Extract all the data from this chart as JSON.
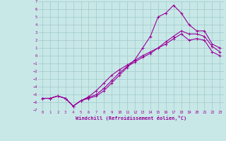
{
  "xlabel": "Windchill (Refroidissement éolien,°C)",
  "xlim": [
    -0.5,
    23.5
  ],
  "ylim": [
    -7,
    7
  ],
  "xticks": [
    0,
    1,
    2,
    3,
    4,
    5,
    6,
    7,
    8,
    9,
    10,
    11,
    12,
    13,
    14,
    15,
    16,
    17,
    18,
    19,
    20,
    21,
    22,
    23
  ],
  "yticks": [
    7,
    6,
    5,
    4,
    3,
    2,
    1,
    0,
    -1,
    -2,
    -3,
    -4,
    -5,
    -6,
    -7
  ],
  "bg_color": "#c8e8e8",
  "grid_color": "#a0c8c8",
  "line_color": "#990099",
  "line1_y": [
    -5.5,
    -5.5,
    -5.2,
    -5.5,
    -6.5,
    -5.8,
    -5.5,
    -5.2,
    -4.5,
    -3.5,
    -2.5,
    -1.5,
    -0.5,
    1.0,
    2.5,
    5.0,
    5.5,
    6.5,
    5.5,
    4.0,
    3.2,
    3.2,
    1.5,
    1.0
  ],
  "line2_y": [
    -5.5,
    -5.5,
    -5.2,
    -5.5,
    -6.5,
    -5.8,
    -5.4,
    -5.0,
    -4.2,
    -3.2,
    -2.2,
    -1.4,
    -0.8,
    -0.2,
    0.3,
    1.0,
    1.8,
    2.5,
    3.2,
    2.8,
    2.8,
    2.5,
    1.2,
    0.5
  ],
  "line3_y": [
    -5.5,
    -5.5,
    -5.2,
    -5.5,
    -6.5,
    -5.8,
    -5.3,
    -4.5,
    -3.5,
    -2.5,
    -1.8,
    -1.2,
    -0.6,
    0.0,
    0.5,
    1.0,
    1.5,
    2.2,
    2.8,
    2.0,
    2.2,
    2.0,
    0.5,
    0.0
  ]
}
